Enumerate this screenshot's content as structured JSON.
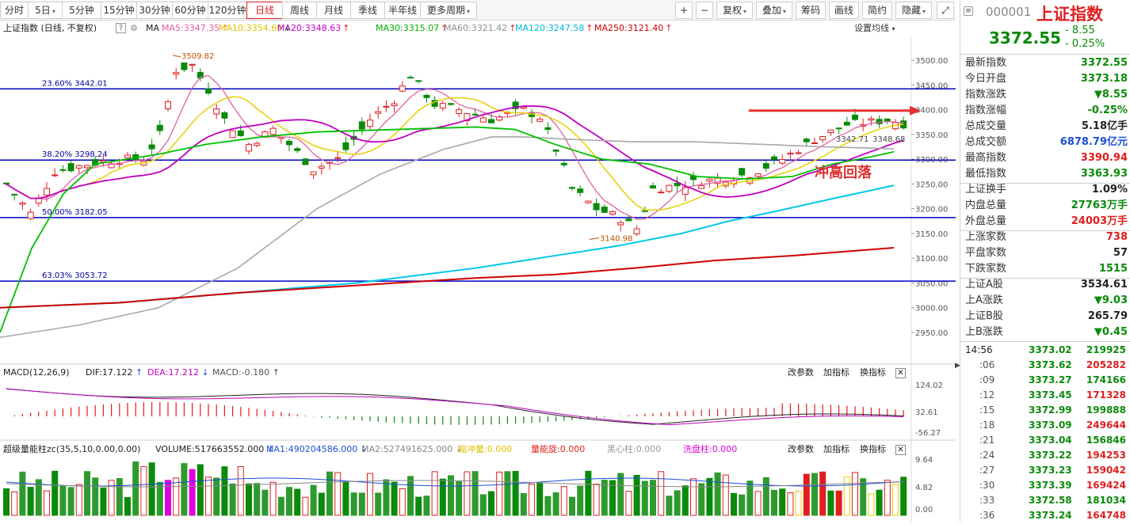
{
  "toolbar": {
    "tabs": [
      {
        "label": "分时",
        "caret": false
      },
      {
        "label": "5日",
        "caret": true
      },
      {
        "label": "5分钟",
        "caret": false
      },
      {
        "label": "15分钟",
        "caret": false
      },
      {
        "label": "30分钟",
        "caret": false
      },
      {
        "label": "60分钟",
        "caret": false
      },
      {
        "label": "120分钟",
        "caret": false
      },
      {
        "label": "日线",
        "caret": false,
        "active": true
      },
      {
        "label": "周线",
        "caret": false
      },
      {
        "label": "月线",
        "caret": false
      },
      {
        "label": "季线",
        "caret": false
      },
      {
        "label": "半年线",
        "caret": false
      },
      {
        "label": "更多周期",
        "caret": true
      }
    ],
    "right_tools": [
      {
        "label": "+",
        "caret": false
      },
      {
        "label": "−",
        "caret": false
      },
      {
        "label": "复权",
        "caret": true
      },
      {
        "label": "叠加",
        "caret": true
      },
      {
        "label": "筹码",
        "caret": false
      },
      {
        "label": "画线",
        "caret": false
      },
      {
        "label": "简约",
        "caret": false
      },
      {
        "label": "隐藏",
        "caret": true
      }
    ],
    "expand_icon": "expand-icon"
  },
  "main_chart": {
    "title": "上证指数 (日线, 不复权)",
    "help": "?",
    "ma_label": "MA",
    "ma": [
      {
        "text": "MA5:3347.35",
        "arrow": "↑",
        "color": "#e060a0"
      },
      {
        "text": "MA10:3354.60",
        "arrow": "↓",
        "color": "#e0c000"
      },
      {
        "text": "MA20:3348.63",
        "arrow": "↑",
        "color": "#c000c0"
      },
      {
        "text": "MA30:3315.07",
        "arrow": "↑",
        "color": "#00b000"
      },
      {
        "text": "MA60:3321.42",
        "arrow": "↑",
        "color": "#909090"
      },
      {
        "text": "MA120:3247.58",
        "arrow": "↑",
        "color": "#00b8d8"
      },
      {
        "text": "MA250:3121.40",
        "arrow": "↑",
        "color": "#d00000"
      }
    ],
    "settings_label": "设置均线",
    "price_ticks": [
      "3500.00",
      "3450.00",
      "3400.00",
      "3350.00",
      "3300.00",
      "3250.00",
      "3200.00",
      "3150.00",
      "3100.00",
      "3050.00",
      "3000.00",
      "2950.00"
    ],
    "fib_lines": [
      {
        "label": "23.60% 3442.01",
        "value": 3442.01
      },
      {
        "label": "38.20% 3298.24",
        "value": 3298.24
      },
      {
        "label": "50.00% 3182.05",
        "value": 3182.05
      },
      {
        "label": "63.03% 3053.72",
        "value": 3053.72
      }
    ],
    "high_label": "3509.82",
    "low_label": "3140.98",
    "last_labels": [
      "3342.71",
      "3348.68"
    ],
    "annotation": "冲高回落"
  },
  "macd": {
    "label": "MACD(12,26,9)",
    "dif": "DIF:17.122",
    "dif_arrow": "↑",
    "dea": "DEA:17.212",
    "dea_arrow": "↓",
    "macd": "MACD:-0.180",
    "macd_arrow": "↑",
    "ticks": [
      "124.02",
      "32.61",
      "-56.27"
    ],
    "buttons": [
      "改参数",
      "加指标",
      "换指标"
    ]
  },
  "volume": {
    "label": "超级量能柱zc(35,5,10,0.00,0.00)",
    "volume": "VOLUME:517663552.000",
    "volume_arrow": "↓",
    "ma1": "MA1:490204586.000",
    "ma1_arrow": "↓",
    "ma2": "MA2:527491625.000",
    "ma2_arrow": "↓",
    "extras": [
      {
        "text": "缩冲量:0.000",
        "color": "#e0c000"
      },
      {
        "text": "量能旋:0.000",
        "color": "#e01e1e"
      },
      {
        "text": "黑心柱:0.000",
        "color": "#999999"
      },
      {
        "text": "洗盘柱:0.000",
        "color": "#e000e0"
      }
    ],
    "ticks": [
      "9.64",
      "4.82",
      "0.00"
    ],
    "buttons": [
      "改参数",
      "加指标",
      "换指标"
    ]
  },
  "quote": {
    "code": "000001",
    "name": "上证指数",
    "price": "3372.55",
    "change": "- 8.55",
    "change_pct": "- 0.25%",
    "rows": [
      {
        "label": "最新指数",
        "value": "3372.55",
        "color": "green"
      },
      {
        "label": "今日开盘",
        "value": "3373.18",
        "color": "green"
      },
      {
        "label": "指数涨跌",
        "value": "▼8.55",
        "color": "green"
      },
      {
        "label": "指数涨幅",
        "value": "-0.25%",
        "color": "green"
      },
      {
        "label": "总成交量",
        "value": "5.18亿手",
        "color": "dark"
      },
      {
        "label": "总成交额",
        "value": "6878.79亿元",
        "color": "blue"
      },
      {
        "label": "最高指数",
        "value": "3390.94",
        "color": "red"
      },
      {
        "label": "最低指数",
        "value": "3363.93",
        "color": "green"
      },
      {
        "label": "上证换手",
        "value": "1.09%",
        "color": "dark"
      },
      {
        "label": "内盘总量",
        "value": "27763万手",
        "color": "green"
      },
      {
        "label": "外盘总量",
        "value": "24003万手",
        "color": "red"
      },
      {
        "label": "上涨家数",
        "value": "738",
        "color": "red"
      },
      {
        "label": "平盘家数",
        "value": "57",
        "color": "dark"
      },
      {
        "label": "下跌家数",
        "value": "1515",
        "color": "green"
      },
      {
        "label": "上证A股",
        "value": "3534.61",
        "color": "dark"
      },
      {
        "label": "上A涨跌",
        "value": "▼9.03",
        "color": "green"
      },
      {
        "label": "上证B股",
        "value": "265.79",
        "color": "dark"
      },
      {
        "label": "上B涨跌",
        "value": "▼0.45",
        "color": "green"
      }
    ],
    "ticks": [
      {
        "time": "14:56",
        "price": "3373.02",
        "vol": "219925",
        "color": "green"
      },
      {
        "time": ":06",
        "price": "3373.62",
        "vol": "205282",
        "color": "red"
      },
      {
        "time": ":09",
        "price": "3373.27",
        "vol": "174166",
        "color": "green"
      },
      {
        "time": ":12",
        "price": "3373.45",
        "vol": "171328",
        "color": "red"
      },
      {
        "time": ":15",
        "price": "3372.99",
        "vol": "199888",
        "color": "green"
      },
      {
        "time": ":18",
        "price": "3373.09",
        "vol": "249644",
        "color": "red"
      },
      {
        "time": ":21",
        "price": "3373.04",
        "vol": "156846",
        "color": "green"
      },
      {
        "time": ":24",
        "price": "3373.22",
        "vol": "194253",
        "color": "red"
      },
      {
        "time": ":27",
        "price": "3373.23",
        "vol": "159042",
        "color": "red"
      },
      {
        "time": ":30",
        "price": "3373.39",
        "vol": "169424",
        "color": "red"
      },
      {
        "time": ":33",
        "price": "3372.58",
        "vol": "181034",
        "color": "green"
      },
      {
        "time": ":36",
        "price": "3373.24",
        "vol": "164748",
        "color": "red"
      }
    ]
  },
  "colors": {
    "up": "#e01e1e",
    "down": "#0a8a0a",
    "fib": "#0000c0",
    "accent": "#d22222"
  }
}
